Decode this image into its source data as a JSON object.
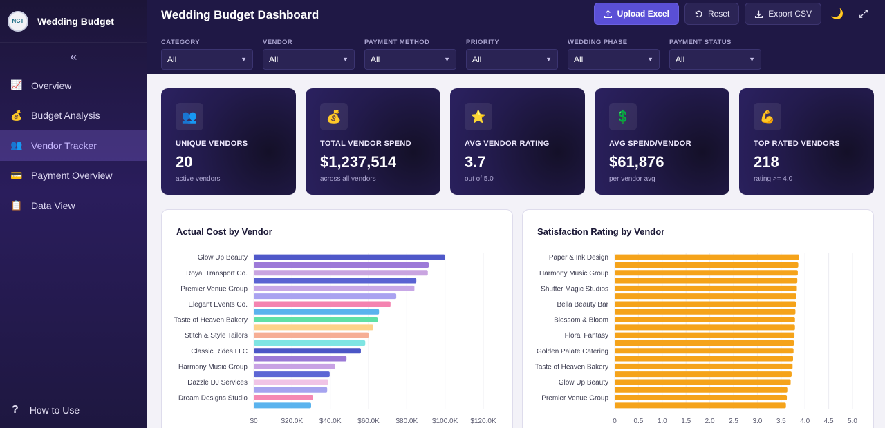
{
  "app": {
    "logo_text": "NGT",
    "brand_title": "Wedding Budget"
  },
  "sidebar": {
    "collapse_glyph": "«",
    "items": [
      {
        "label": "Overview",
        "icon": "chart-icon",
        "glyph": "📈",
        "active": false
      },
      {
        "label": "Budget Analysis",
        "icon": "money-bag-icon",
        "glyph": "💰",
        "active": false
      },
      {
        "label": "Vendor Tracker",
        "icon": "people-icon",
        "glyph": "👥",
        "active": true
      },
      {
        "label": "Payment Overview",
        "icon": "credit-card-icon",
        "glyph": "💳",
        "active": false
      },
      {
        "label": "Data View",
        "icon": "clipboard-icon",
        "glyph": "📋",
        "active": false
      }
    ],
    "help_label": "How to Use",
    "help_glyph": "?"
  },
  "header": {
    "title": "Wedding Budget Dashboard",
    "upload_label": "Upload Excel",
    "reset_label": "Reset",
    "export_label": "Export CSV"
  },
  "filters": [
    {
      "label": "CATEGORY",
      "value": "All"
    },
    {
      "label": "VENDOR",
      "value": "All"
    },
    {
      "label": "PAYMENT METHOD",
      "value": "All"
    },
    {
      "label": "PRIORITY",
      "value": "All"
    },
    {
      "label": "WEDDING PHASE",
      "value": "All"
    },
    {
      "label": "PAYMENT STATUS",
      "value": "All"
    }
  ],
  "kpis": [
    {
      "label": "UNIQUE VENDORS",
      "value": "20",
      "sub": "active vendors",
      "icon": "people-icon",
      "glyph": "👥"
    },
    {
      "label": "TOTAL VENDOR SPEND",
      "value": "$1,237,514",
      "sub": "across all vendors",
      "icon": "money-bag-icon",
      "glyph": "💰"
    },
    {
      "label": "AVG VENDOR RATING",
      "value": "3.7",
      "sub": "out of 5.0",
      "icon": "star-icon",
      "glyph": "⭐"
    },
    {
      "label": "AVG SPEND/VENDOR",
      "value": "$61,876",
      "sub": "per vendor avg",
      "icon": "dollar-icon",
      "glyph": "💲"
    },
    {
      "label": "TOP RATED VENDORS",
      "value": "218",
      "sub": "rating >= 4.0",
      "icon": "flexed-biceps-icon",
      "glyph": "💪"
    }
  ],
  "chart_data": [
    {
      "type": "bar",
      "orientation": "horizontal",
      "title": "Actual Cost by Vendor",
      "categories": [
        "Glow Up Beauty",
        "",
        "Royal Transport Co.",
        "",
        "Premier Venue Group",
        "",
        "Elegant Events Co.",
        "",
        "Taste of Heaven Bakery",
        "",
        "Stitch & Style Tailors",
        "",
        "Classic Rides LLC",
        "",
        "Harmony Music Group",
        "",
        "Dazzle DJ Services",
        "",
        "Dream Designs Studio",
        ""
      ],
      "values": [
        100000,
        91500,
        91000,
        85000,
        84000,
        74500,
        71500,
        65500,
        64800,
        62500,
        60000,
        58300,
        56000,
        48500,
        42500,
        39700,
        39000,
        38400,
        31000,
        30000
      ],
      "colors": [
        "#4f58c9",
        "#9d7ad8",
        "#c9a4e0",
        "#5a63d2",
        "#c7a7e6",
        "#a9a2f0",
        "#f483b0",
        "#5ab3ee",
        "#5fe0a6",
        "#fdd28a",
        "#f6ae95",
        "#7fe5e3",
        "#4b56c6",
        "#9b79d6",
        "#c8a2e4",
        "#5d66d4",
        "#f0c4e6",
        "#a6a3ef",
        "#f589b3",
        "#5ab3ee"
      ],
      "xlim": [
        0,
        120000
      ],
      "xticks": [
        "$0",
        "$20.0K",
        "$40.0K",
        "$60.0K",
        "$80.0K",
        "$100.0K",
        "$120.0K"
      ]
    },
    {
      "type": "bar",
      "orientation": "horizontal",
      "title": "Satisfaction Rating by Vendor",
      "categories": [
        "Paper & Ink Design",
        "",
        "Harmony Music Group",
        "",
        "Shutter Magic Studios",
        "",
        "Bella Beauty Bar",
        "",
        "Blossom & Bloom",
        "",
        "Floral Fantasy",
        "",
        "Golden Palate Catering",
        "",
        "Taste of Heaven Bakery",
        "",
        "Glow Up Beauty",
        "",
        "Premier Venue Group",
        ""
      ],
      "values": [
        3.88,
        3.86,
        3.85,
        3.84,
        3.83,
        3.82,
        3.81,
        3.8,
        3.79,
        3.79,
        3.78,
        3.77,
        3.76,
        3.75,
        3.74,
        3.72,
        3.7,
        3.63,
        3.62,
        3.6
      ],
      "color": "#f5a31a",
      "xlim": [
        0,
        5
      ],
      "xticks": [
        "0",
        "0.5",
        "1.0",
        "1.5",
        "2.0",
        "2.5",
        "3.0",
        "3.5",
        "4.0",
        "4.5",
        "5.0"
      ]
    }
  ]
}
